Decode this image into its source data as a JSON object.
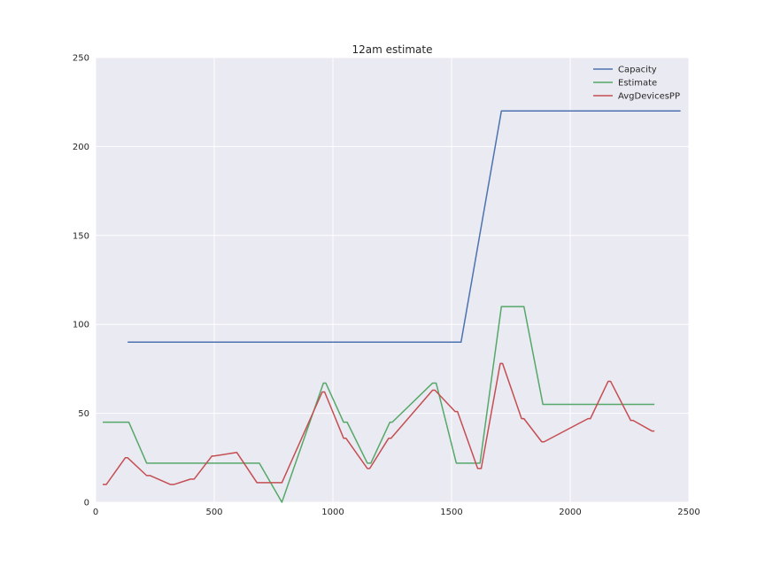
{
  "chart_data": {
    "type": "line",
    "title": "12am estimate",
    "xlabel": "",
    "ylabel": "",
    "xlim": [
      0,
      2500
    ],
    "ylim": [
      0,
      250
    ],
    "xticks": [
      0,
      500,
      1000,
      1500,
      2000,
      2500
    ],
    "yticks": [
      0,
      50,
      100,
      150,
      200,
      250
    ],
    "grid": true,
    "legend_position": "top-right",
    "colors": {
      "background": "#eaeaf2",
      "grid": "#ffffff",
      "Capacity": "#4c72b0",
      "Estimate": "#55a868",
      "AvgDevicesPP": "#c44e52"
    },
    "series": [
      {
        "name": "Capacity",
        "x": [
          135,
          1540,
          1710,
          2465
        ],
        "y": [
          90,
          90,
          220,
          220
        ]
      },
      {
        "name": "Estimate",
        "x": [
          30,
          140,
          215,
          690,
          785,
          960,
          970,
          1045,
          1060,
          1145,
          1160,
          1240,
          1250,
          1420,
          1435,
          1520,
          1620,
          1710,
          1805,
          1885,
          2355
        ],
        "y": [
          45,
          45,
          22,
          22,
          0,
          67,
          67,
          45,
          45,
          22,
          22,
          45,
          45,
          67,
          67,
          22,
          22,
          110,
          110,
          55,
          55
        ]
      },
      {
        "name": "AvgDevicesPP",
        "x": [
          30,
          45,
          125,
          135,
          215,
          230,
          315,
          330,
          400,
          415,
          490,
          500,
          595,
          680,
          785,
          955,
          965,
          1045,
          1055,
          1145,
          1155,
          1235,
          1245,
          1420,
          1430,
          1515,
          1525,
          1610,
          1625,
          1705,
          1715,
          1795,
          1805,
          1880,
          1890,
          2075,
          2085,
          2160,
          2170,
          2255,
          2265,
          2345,
          2355
        ],
        "y": [
          10,
          10,
          25,
          25,
          15,
          15,
          10,
          10,
          13,
          13,
          26,
          26,
          28,
          11,
          11,
          62,
          62,
          36,
          36,
          19,
          19,
          36,
          36,
          63,
          63,
          51,
          51,
          19,
          19,
          78,
          78,
          47,
          47,
          34,
          34,
          47,
          47,
          68,
          68,
          46,
          46,
          40,
          40
        ]
      }
    ]
  }
}
